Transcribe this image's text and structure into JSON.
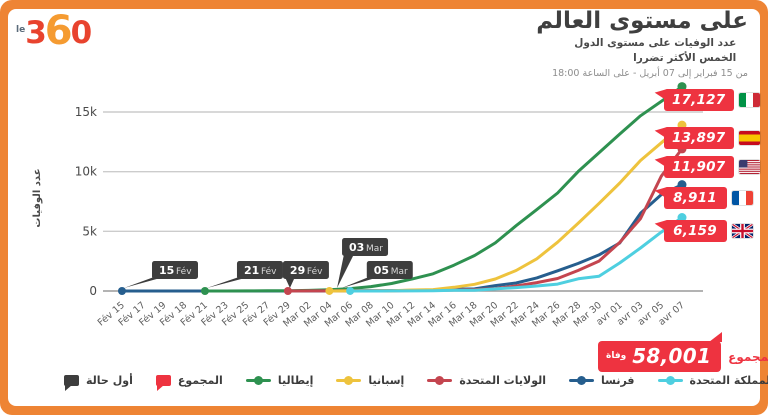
{
  "brand": {
    "prefix": "le",
    "d1": "3",
    "d2": "6",
    "d3": "0"
  },
  "header": {
    "title": "على مستوى العالم",
    "subtitle": "عدد الوفيات على مستوى الدول الخمس الأكثر تضررا",
    "period": "من 15 فبراير إلى 07 أبريل - على الساعة 18:00"
  },
  "chart_data": {
    "type": "line",
    "ylabel": "عدد الوفيات",
    "ylim": [
      0,
      17500
    ],
    "grid": true,
    "legend_position": "bottom",
    "yticks": [
      {
        "label": "0",
        "value": 0
      },
      {
        "label": "5k",
        "value": 5000
      },
      {
        "label": "10k",
        "value": 10000
      },
      {
        "label": "15k",
        "value": 15000
      }
    ],
    "x_labels": [
      "Fév 15",
      "Fév 17",
      "Fév 19",
      "Fév 18",
      "Fév 21",
      "Fév 23",
      "Fév 25",
      "Fév 27",
      "Fév 29",
      "Mar 02",
      "Mar 04",
      "Mar 06",
      "Mar 08",
      "Mar 10",
      "Mar 12",
      "Mar 14",
      "Mar 16",
      "Mar 18",
      "Mar 20",
      "Mar 22",
      "Mar 24",
      "Mar 26",
      "Mar 28",
      "Mar 30",
      "avr 01",
      "avr 03",
      "avr 05",
      "avr 07"
    ],
    "series": [
      {
        "name": "إيطاليا",
        "flag": "it",
        "color": "#2e9150",
        "final": "17,127",
        "values": [
          null,
          null,
          null,
          null,
          1,
          3,
          7,
          17,
          29,
          52,
          107,
          197,
          366,
          631,
          1016,
          1441,
          2158,
          2978,
          4032,
          5476,
          6820,
          8215,
          10023,
          11591,
          13155,
          14681,
          15887,
          17127
        ]
      },
      {
        "name": "إسبانيا",
        "flag": "es",
        "color": "#eec33d",
        "final": "13,897",
        "values": [
          null,
          null,
          null,
          null,
          null,
          null,
          null,
          null,
          null,
          null,
          2,
          5,
          10,
          28,
          84,
          120,
          309,
          558,
          1002,
          1720,
          2696,
          4089,
          5690,
          7340,
          9053,
          10935,
          12418,
          13897
        ]
      },
      {
        "name": "الولايات المتحدة",
        "flag": "us",
        "color": "#c4454f",
        "final": "11,907",
        "values": [
          null,
          null,
          null,
          null,
          null,
          null,
          null,
          null,
          1,
          6,
          11,
          14,
          21,
          28,
          41,
          58,
          85,
          118,
          200,
          417,
          706,
          1050,
          1724,
          2509,
          4076,
          6070,
          9619,
          11907
        ]
      },
      {
        "name": "فرنسا",
        "flag": "fr",
        "color": "#265e8e",
        "final": "8,911",
        "values": [
          1,
          1,
          1,
          1,
          1,
          1,
          2,
          2,
          2,
          3,
          4,
          9,
          19,
          33,
          48,
          79,
          148,
          175,
          450,
          674,
          1100,
          1696,
          2314,
          3024,
          4032,
          6507,
          8078,
          8911
        ]
      },
      {
        "name": "المملكة المتحدة",
        "flag": "gb",
        "color": "#4ecfe0",
        "final": "6,159",
        "values": [
          null,
          null,
          null,
          null,
          null,
          null,
          null,
          null,
          null,
          null,
          null,
          2,
          3,
          6,
          8,
          21,
          55,
          71,
          177,
          281,
          422,
          578,
          1019,
          1228,
          2352,
          3605,
          4934,
          6159
        ]
      }
    ],
    "first_case_annotations": [
      {
        "day": "15",
        "month": "Fév",
        "tick": 0,
        "dx": 30,
        "raised": false
      },
      {
        "day": "21",
        "month": "Fév",
        "tick": 4,
        "dx": 32,
        "raised": false
      },
      {
        "day": "29",
        "month": "Fév",
        "tick": 8,
        "dx": -5,
        "raised": false
      },
      {
        "day": "03",
        "month": "Mar",
        "tick": 9.5,
        "dx": 23,
        "raised": true
      },
      {
        "day": "05",
        "month": "Mar",
        "tick": 10.5,
        "dx": 27,
        "raised": false
      }
    ]
  },
  "total": {
    "label": "المجموع",
    "value": "58,001",
    "unit": "وفاة"
  },
  "legend": [
    {
      "label": "أول حالة",
      "icon": "flag",
      "color": "#3d3d3d"
    },
    {
      "label": "المجموع",
      "icon": "flag",
      "color": "#ee3340"
    },
    {
      "label": "إيطاليا",
      "icon": "line",
      "color": "#2e9150"
    },
    {
      "label": "إسبانيا",
      "icon": "line",
      "color": "#eec33d"
    },
    {
      "label": "الولايات المتحدة",
      "icon": "line",
      "color": "#c4454f"
    },
    {
      "label": "فرنسا",
      "icon": "line",
      "color": "#265e8e"
    },
    {
      "label": "المملكة المتحدة",
      "icon": "line",
      "color": "#4ecfe0"
    }
  ],
  "colors": {
    "frame": "#ee8434",
    "badge_red": "#ee3340",
    "annotation_dark": "#3d3d3d"
  }
}
